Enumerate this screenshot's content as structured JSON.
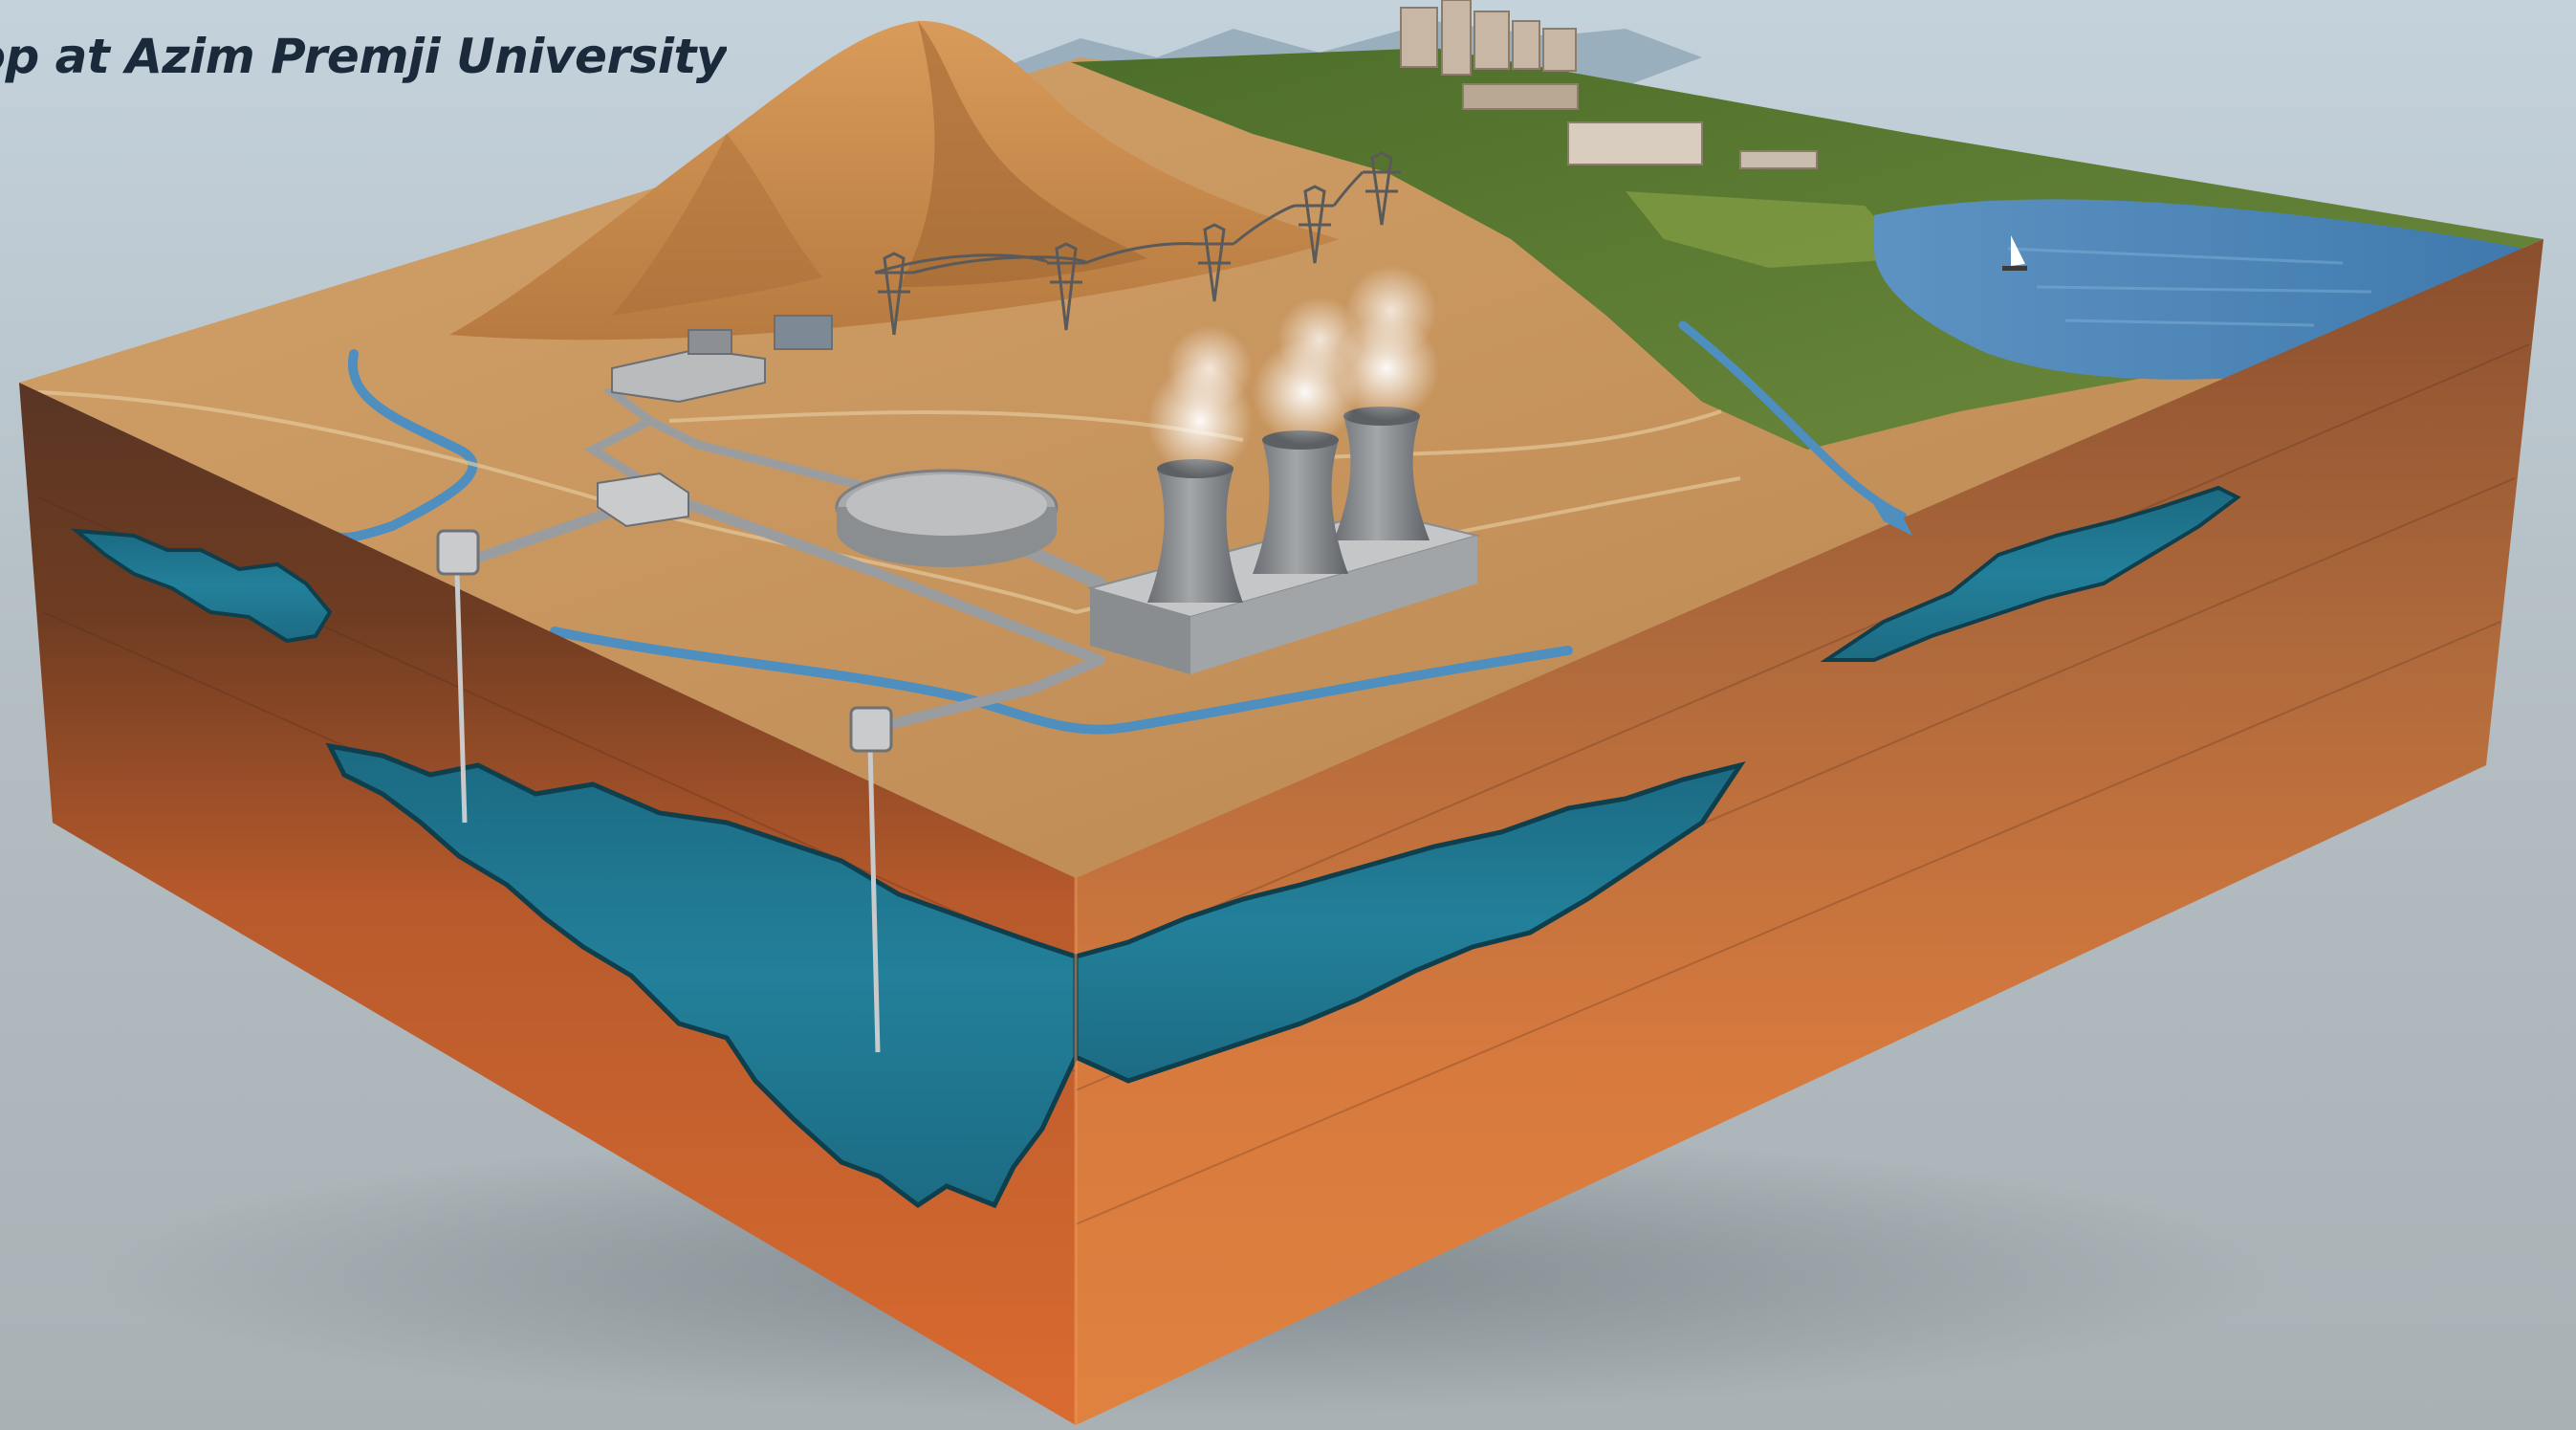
{
  "caption": "Workshop at Azim Premji University",
  "colors": {
    "background": "#aeb7bc",
    "sky": "#c4d2dc",
    "soil_surface": "#c99860",
    "cross_section_dark": "#5a3524",
    "cross_section_mid": "#b85a2c",
    "cross_section_orange": "#e07a3c",
    "groundwater": "#1f7a93",
    "surface_water": "#4e8fc0",
    "vegetation": "#5f7f36",
    "mountain": "#c98a4c",
    "plant_grey": "#8a8d90"
  },
  "icons": [
    "mountain-icon",
    "cooling-tower-icon",
    "steam-plume-icon",
    "pipeline-icon",
    "well-head-icon",
    "transmission-tower-icon",
    "city-skyline-icon",
    "lake-icon",
    "sailboat-icon",
    "aquifer-icon",
    "river-icon"
  ]
}
